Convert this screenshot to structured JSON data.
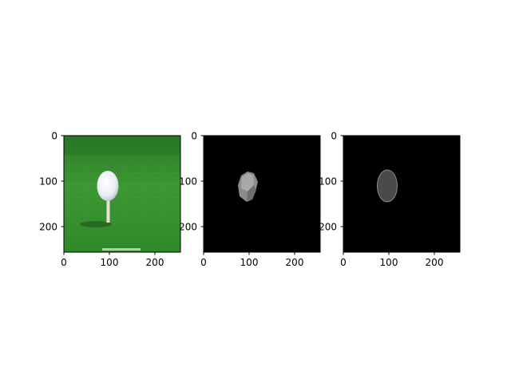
{
  "figure": {
    "background": "#ffffff"
  },
  "panels": [
    {
      "id": "photo",
      "content": "golf-ball-on-tee",
      "colors": {
        "grass_dark": "#1f6d1f",
        "grass_mid": "#3f9a34",
        "grass_light": "#63b04a",
        "ball": "#f2f4f7",
        "tee": "#e7e2d8"
      },
      "x_ticks": [
        "0",
        "100",
        "200"
      ],
      "y_ticks": [
        "0",
        "100",
        "200"
      ]
    },
    {
      "id": "mask-predicted",
      "content": "gray-irregular-blob",
      "colors": {
        "background": "#000000",
        "blob_light": "#9c9c9c",
        "blob_dark": "#7a7a7a"
      },
      "x_ticks": [
        "0",
        "100",
        "200"
      ],
      "y_ticks": [
        "0",
        "100",
        "200"
      ]
    },
    {
      "id": "mask-ground-truth",
      "content": "gray-ellipse",
      "colors": {
        "background": "#000000",
        "ellipse": "#4a4a4a",
        "outline": "#8a8a8a"
      },
      "x_ticks": [
        "0",
        "100",
        "200"
      ],
      "y_ticks": [
        "0",
        "100",
        "200"
      ]
    }
  ]
}
